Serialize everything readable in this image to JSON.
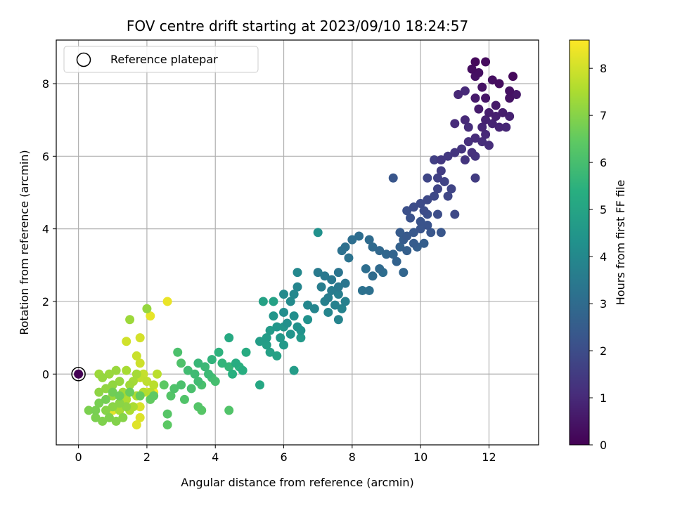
{
  "chart_data": {
    "type": "scatter",
    "title": "FOV centre drift starting at 2023/09/10 18:24:57",
    "xlabel": "Angular distance from reference (arcmin)",
    "ylabel": "Rotation from reference (arcmin)",
    "xlim": [
      -0.65,
      13.45
    ],
    "ylim": [
      -1.95,
      9.2
    ],
    "xticks": [
      0,
      2,
      4,
      6,
      8,
      10,
      12
    ],
    "yticks": [
      0,
      2,
      4,
      6,
      8
    ],
    "grid": true,
    "colormap": "viridis",
    "colorbar": {
      "label": "Hours from first FF file",
      "range": [
        0,
        8.6
      ],
      "ticks": [
        0,
        1,
        2,
        3,
        4,
        5,
        6,
        7,
        8
      ]
    },
    "legend": {
      "placement": "top-left",
      "entries": [
        {
          "label": "Reference platepar",
          "marker": "open-circle"
        }
      ]
    },
    "reference_point": {
      "x": 0,
      "y": 0,
      "c": 0
    },
    "points": [
      [
        11.6,
        8.6,
        0.2
      ],
      [
        11.9,
        8.6,
        0.25
      ],
      [
        11.5,
        8.4,
        0.3
      ],
      [
        11.7,
        8.3,
        0.35
      ],
      [
        11.6,
        8.2,
        0.4
      ],
      [
        12.7,
        8.2,
        0.2
      ],
      [
        12.3,
        8.0,
        0.3
      ],
      [
        12.1,
        8.1,
        0.35
      ],
      [
        11.8,
        7.9,
        0.45
      ],
      [
        11.9,
        7.6,
        0.5
      ],
      [
        12.6,
        7.8,
        0.4
      ],
      [
        12.6,
        7.6,
        0.45
      ],
      [
        12.8,
        7.7,
        0.55
      ],
      [
        11.6,
        7.6,
        0.6
      ],
      [
        12.2,
        7.4,
        0.6
      ],
      [
        11.7,
        7.3,
        0.65
      ],
      [
        12.0,
        7.2,
        0.7
      ],
      [
        12.2,
        7.1,
        0.75
      ],
      [
        12.4,
        7.2,
        0.7
      ],
      [
        12.6,
        7.1,
        0.8
      ],
      [
        11.9,
        7.0,
        0.8
      ],
      [
        12.1,
        6.9,
        0.85
      ],
      [
        11.8,
        6.8,
        0.9
      ],
      [
        12.3,
        6.8,
        0.9
      ],
      [
        12.5,
        6.8,
        0.95
      ],
      [
        11.9,
        6.6,
        1.0
      ],
      [
        11.6,
        6.5,
        1.05
      ],
      [
        11.8,
        6.4,
        1.1
      ],
      [
        12.0,
        6.3,
        1.1
      ],
      [
        11.4,
        6.4,
        1.15
      ],
      [
        11.5,
        6.1,
        1.2
      ],
      [
        11.6,
        6.0,
        1.25
      ],
      [
        11.3,
        5.9,
        1.3
      ],
      [
        11.2,
        6.2,
        1.3
      ],
      [
        11.0,
        6.1,
        1.35
      ],
      [
        10.8,
        6.0,
        1.4
      ],
      [
        10.6,
        5.9,
        1.4
      ],
      [
        11.1,
        7.7,
        0.95
      ],
      [
        11.3,
        7.8,
        1.0
      ],
      [
        11.3,
        7.0,
        1.0
      ],
      [
        11.0,
        6.9,
        1.05
      ],
      [
        11.4,
        6.8,
        1.1
      ],
      [
        11.6,
        5.4,
        1.5
      ],
      [
        10.6,
        5.6,
        1.55
      ],
      [
        10.4,
        5.9,
        1.6
      ],
      [
        10.5,
        5.4,
        1.65
      ],
      [
        10.7,
        5.3,
        1.7
      ],
      [
        10.5,
        5.1,
        1.75
      ],
      [
        10.2,
        5.4,
        1.8
      ],
      [
        10.9,
        5.1,
        1.75
      ],
      [
        10.8,
        4.9,
        1.8
      ],
      [
        10.4,
        4.9,
        1.85
      ],
      [
        10.2,
        4.8,
        1.9
      ],
      [
        10.0,
        4.7,
        1.95
      ],
      [
        9.8,
        4.6,
        2.0
      ],
      [
        10.1,
        4.5,
        2.0
      ],
      [
        10.2,
        4.4,
        2.05
      ],
      [
        10.5,
        4.4,
        2.0
      ],
      [
        11.0,
        4.4,
        1.9
      ],
      [
        9.6,
        4.5,
        2.1
      ],
      [
        9.7,
        4.3,
        2.15
      ],
      [
        10.0,
        4.2,
        2.2
      ],
      [
        10.2,
        4.1,
        2.2
      ],
      [
        10.0,
        4.0,
        2.25
      ],
      [
        10.3,
        3.9,
        2.3
      ],
      [
        10.6,
        3.9,
        2.3
      ],
      [
        9.8,
        3.9,
        2.35
      ],
      [
        9.6,
        3.8,
        2.4
      ],
      [
        9.4,
        3.9,
        2.45
      ],
      [
        9.2,
        5.4,
        2.3
      ],
      [
        9.5,
        3.7,
        2.5
      ],
      [
        9.8,
        3.6,
        2.5
      ],
      [
        10.1,
        3.6,
        2.55
      ],
      [
        9.9,
        3.5,
        2.6
      ],
      [
        9.6,
        3.4,
        2.6
      ],
      [
        9.4,
        3.5,
        2.65
      ],
      [
        9.3,
        3.1,
        2.7
      ],
      [
        9.2,
        3.3,
        2.75
      ],
      [
        9.5,
        2.8,
        2.8
      ],
      [
        9.0,
        3.3,
        2.85
      ],
      [
        8.8,
        3.4,
        2.9
      ],
      [
        8.6,
        3.5,
        2.95
      ],
      [
        8.5,
        3.7,
        3.0
      ],
      [
        8.2,
        3.8,
        3.05
      ],
      [
        8.0,
        3.7,
        3.1
      ],
      [
        7.8,
        3.5,
        3.15
      ],
      [
        8.8,
        2.9,
        2.95
      ],
      [
        8.6,
        2.7,
        3.0
      ],
      [
        8.9,
        2.8,
        3.05
      ],
      [
        8.4,
        2.9,
        3.1
      ],
      [
        8.5,
        2.3,
        3.15
      ],
      [
        8.3,
        2.3,
        3.2
      ],
      [
        7.7,
        3.4,
        3.2
      ],
      [
        7.9,
        3.2,
        3.25
      ],
      [
        7.6,
        2.8,
        3.3
      ],
      [
        7.8,
        2.5,
        3.35
      ],
      [
        7.4,
        2.6,
        3.4
      ],
      [
        7.6,
        2.4,
        3.45
      ],
      [
        7.2,
        2.7,
        3.45
      ],
      [
        7.0,
        2.8,
        3.5
      ],
      [
        7.4,
        2.3,
        3.55
      ],
      [
        7.1,
        2.4,
        3.6
      ],
      [
        7.3,
        2.1,
        3.6
      ],
      [
        7.6,
        2.2,
        3.65
      ],
      [
        7.8,
        2.0,
        3.7
      ],
      [
        7.5,
        1.9,
        3.75
      ],
      [
        7.2,
        2.0,
        3.75
      ],
      [
        7.7,
        1.8,
        3.8
      ],
      [
        7.6,
        1.5,
        3.85
      ],
      [
        7.3,
        1.7,
        3.9
      ],
      [
        6.9,
        1.8,
        3.9
      ],
      [
        6.7,
        1.9,
        3.95
      ],
      [
        6.4,
        2.4,
        3.9
      ],
      [
        6.3,
        2.2,
        4.0
      ],
      [
        6.0,
        2.2,
        4.05
      ],
      [
        6.4,
        2.8,
        4.0
      ],
      [
        6.2,
        2.0,
        4.1
      ],
      [
        6.0,
        1.7,
        4.15
      ],
      [
        6.3,
        1.6,
        4.2
      ],
      [
        6.1,
        1.4,
        4.25
      ],
      [
        6.4,
        1.3,
        4.3
      ],
      [
        6.7,
        1.5,
        4.3
      ],
      [
        6.5,
        1.2,
        4.35
      ],
      [
        6.2,
        1.1,
        4.4
      ],
      [
        6.0,
        1.3,
        4.45
      ],
      [
        5.8,
        1.3,
        4.5
      ],
      [
        5.7,
        1.6,
        4.5
      ],
      [
        5.9,
        1.0,
        4.55
      ],
      [
        6.0,
        0.8,
        4.6
      ],
      [
        6.5,
        1.0,
        4.6
      ],
      [
        5.6,
        1.2,
        4.65
      ],
      [
        5.5,
        1.0,
        4.7
      ],
      [
        5.3,
        0.9,
        4.75
      ],
      [
        5.5,
        0.8,
        4.8
      ],
      [
        5.6,
        0.6,
        4.85
      ],
      [
        5.8,
        0.5,
        4.9
      ],
      [
        6.3,
        0.1,
        4.7
      ],
      [
        7.0,
        3.9,
        4.3
      ],
      [
        5.4,
        2.0,
        4.9
      ],
      [
        5.7,
        2.0,
        4.9
      ],
      [
        5.3,
        -0.3,
        5.1
      ],
      [
        4.4,
        1.0,
        5.2
      ],
      [
        4.9,
        0.6,
        5.25
      ],
      [
        4.6,
        0.3,
        5.3
      ],
      [
        4.8,
        0.1,
        5.35
      ],
      [
        4.5,
        0.0,
        5.4
      ],
      [
        4.7,
        0.2,
        5.45
      ],
      [
        4.1,
        0.6,
        5.5
      ],
      [
        3.9,
        0.4,
        5.55
      ],
      [
        4.2,
        0.3,
        5.6
      ],
      [
        4.4,
        0.2,
        5.65
      ],
      [
        3.5,
        0.3,
        5.7
      ],
      [
        3.7,
        0.2,
        5.75
      ],
      [
        3.8,
        0.0,
        5.8
      ],
      [
        3.4,
        0.0,
        5.85
      ],
      [
        3.2,
        0.1,
        5.9
      ],
      [
        3.5,
        -0.2,
        5.9
      ],
      [
        3.9,
        -0.1,
        5.95
      ],
      [
        4.0,
        -0.2,
        6.0
      ],
      [
        3.6,
        -0.3,
        6.05
      ],
      [
        3.3,
        -0.4,
        6.05
      ],
      [
        3.0,
        -0.3,
        6.1
      ],
      [
        2.8,
        -0.4,
        6.15
      ],
      [
        3.1,
        -0.7,
        6.2
      ],
      [
        2.7,
        -0.6,
        6.25
      ],
      [
        2.6,
        -1.1,
        6.3
      ],
      [
        3.5,
        -0.9,
        6.25
      ],
      [
        3.6,
        -1.0,
        6.3
      ],
      [
        4.4,
        -1.0,
        6.2
      ],
      [
        2.9,
        0.6,
        6.1
      ],
      [
        3.0,
        0.3,
        6.15
      ],
      [
        2.6,
        -1.4,
        6.4
      ],
      [
        2.5,
        -0.3,
        6.4
      ],
      [
        2.2,
        -0.6,
        6.45
      ],
      [
        2.1,
        -0.7,
        6.5
      ],
      [
        1.8,
        -0.6,
        6.55
      ],
      [
        1.5,
        -0.5,
        6.6
      ],
      [
        1.2,
        -0.6,
        6.65
      ],
      [
        1.0,
        -0.5,
        6.7
      ],
      [
        0.8,
        -0.7,
        6.75
      ],
      [
        0.6,
        -0.8,
        6.8
      ],
      [
        0.5,
        -1.0,
        6.8
      ],
      [
        0.3,
        -1.0,
        6.85
      ],
      [
        0.5,
        -1.2,
        6.85
      ],
      [
        0.7,
        -1.3,
        6.9
      ],
      [
        0.9,
        -1.2,
        6.9
      ],
      [
        1.1,
        -1.3,
        6.95
      ],
      [
        1.3,
        -1.2,
        7.0
      ],
      [
        0.8,
        -1.0,
        7.0
      ],
      [
        1.0,
        -0.9,
        7.05
      ],
      [
        1.2,
        -0.8,
        7.05
      ],
      [
        1.4,
        -0.9,
        7.1
      ],
      [
        0.6,
        -0.5,
        7.1
      ],
      [
        0.8,
        -0.4,
        7.15
      ],
      [
        1.0,
        -0.3,
        7.15
      ],
      [
        1.2,
        -0.2,
        7.2
      ],
      [
        0.7,
        -0.1,
        7.2
      ],
      [
        0.9,
        0.0,
        7.25
      ],
      [
        1.1,
        0.1,
        7.25
      ],
      [
        0.6,
        0.0,
        7.3
      ],
      [
        1.0,
        -0.6,
        7.3
      ],
      [
        1.3,
        -0.5,
        7.35
      ],
      [
        1.5,
        -0.3,
        7.35
      ],
      [
        1.6,
        -0.2,
        7.4
      ],
      [
        1.7,
        0.0,
        7.4
      ],
      [
        1.4,
        0.1,
        7.45
      ],
      [
        1.2,
        -1.0,
        7.45
      ],
      [
        1.5,
        -1.0,
        7.5
      ],
      [
        1.6,
        -0.9,
        7.5
      ],
      [
        1.4,
        -0.7,
        7.55
      ],
      [
        1.7,
        -0.6,
        7.55
      ],
      [
        1.5,
        1.5,
        7.3
      ],
      [
        2.0,
        1.8,
        7.2
      ],
      [
        1.9,
        -0.5,
        7.6
      ],
      [
        2.1,
        -0.5,
        7.65
      ],
      [
        2.2,
        -0.3,
        7.7
      ],
      [
        2.0,
        -0.2,
        7.75
      ],
      [
        1.8,
        -0.1,
        7.8
      ],
      [
        1.9,
        0.0,
        7.85
      ],
      [
        2.3,
        0.0,
        7.7
      ],
      [
        1.7,
        0.5,
        7.9
      ],
      [
        1.8,
        0.3,
        7.95
      ],
      [
        1.4,
        0.9,
        8.0
      ],
      [
        1.8,
        1.0,
        8.05
      ],
      [
        1.8,
        -0.9,
        8.1
      ],
      [
        1.8,
        -1.2,
        8.15
      ],
      [
        1.7,
        -1.4,
        8.2
      ],
      [
        1.0,
        -1.0,
        8.25
      ],
      [
        2.1,
        1.6,
        8.3
      ],
      [
        2.6,
        2.0,
        8.35
      ],
      [
        1.3,
        -0.6,
        8.4
      ],
      [
        2.0,
        -0.5,
        8.45
      ],
      [
        2.2,
        -0.5,
        8.5
      ]
    ]
  }
}
